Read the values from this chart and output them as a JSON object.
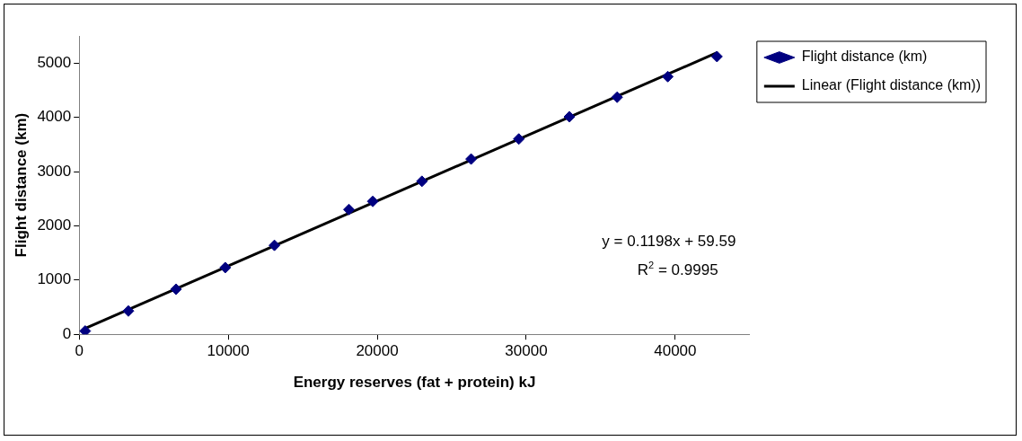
{
  "chart_data": {
    "type": "scatter",
    "xlabel": "Energy reserves (fat + protein) kJ",
    "ylabel": "Flight distance (km)",
    "x": [
      400,
      3300,
      6500,
      9800,
      13100,
      18100,
      19700,
      23000,
      26300,
      29500,
      32900,
      36100,
      39500,
      42800
    ],
    "series": [
      {
        "name": "Flight distance (km)",
        "color": "#000080",
        "marker": "diamond",
        "values": [
          60,
          430,
          830,
          1230,
          1640,
          2300,
          2450,
          2820,
          3230,
          3600,
          4010,
          4370,
          4750,
          5120
        ]
      },
      {
        "name": "Linear (Flight distance (km))",
        "type": "line",
        "color": "#000000",
        "marker": "none",
        "line_style": "solid",
        "x": [
          400,
          42800
        ],
        "values": [
          110,
          5190
        ]
      }
    ],
    "xlim": [
      0,
      45000
    ],
    "xticks": [
      0,
      10000,
      20000,
      30000,
      40000
    ],
    "ylim": [
      0,
      5500
    ],
    "yticks": [
      0,
      1000,
      2000,
      3000,
      4000,
      5000
    ],
    "grid": false,
    "legend": "top right",
    "annotations": [
      "y = 0.1198x + 59.59",
      "R$^{2}$ = 0.9995"
    ]
  }
}
